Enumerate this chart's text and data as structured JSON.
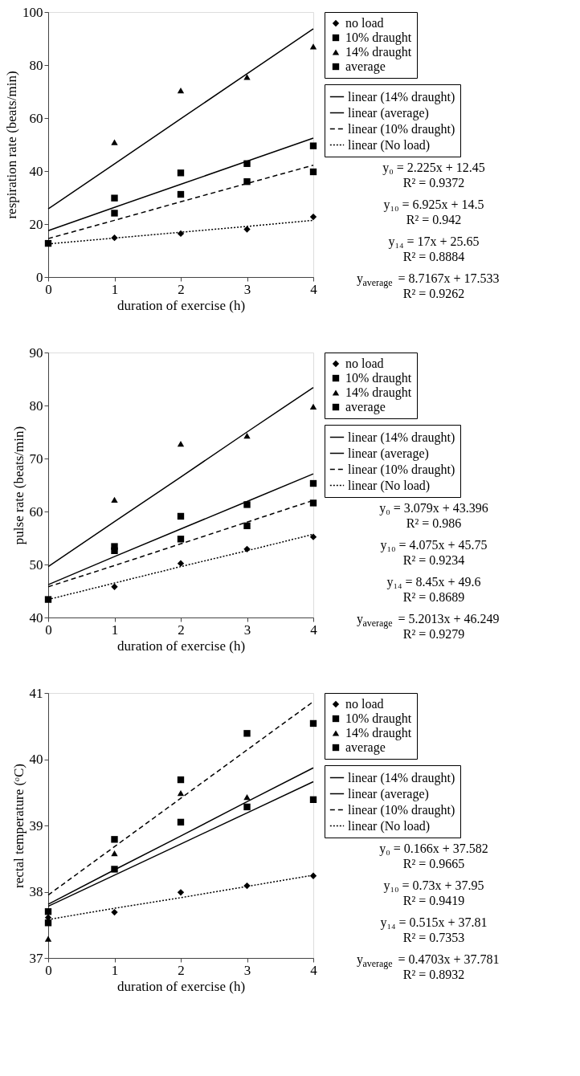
{
  "chart_data": [
    {
      "type": "scatter",
      "xlabel": "duration of exercise (h)",
      "ylabel": "respiration rate (beats/min)",
      "x": [
        0,
        1,
        2,
        3,
        4
      ],
      "xlim": [
        0,
        4
      ],
      "xticks": [
        0,
        1,
        2,
        3,
        4
      ],
      "ylim": [
        0,
        100
      ],
      "yticks": [
        0,
        20,
        40,
        60,
        80,
        100
      ],
      "grid": false,
      "legend": "right",
      "series": [
        {
          "name": "no load",
          "marker": "diamond",
          "color": "#000000",
          "values": [
            null,
            14.8,
            16.4,
            18.0,
            22.7
          ]
        },
        {
          "name": "10% draught",
          "marker": "square",
          "color": "#000000",
          "values": [
            null,
            24.1,
            31.2,
            36.0,
            39.7
          ]
        },
        {
          "name": "14% draught",
          "marker": "triangle",
          "color": "#000000",
          "values": [
            null,
            50.9,
            70.4,
            75.5,
            87.0
          ]
        },
        {
          "name": "average",
          "marker": "square",
          "color": "#000000",
          "values": [
            12.7,
            29.8,
            39.3,
            42.8,
            49.5
          ]
        },
        {
          "name": "linear (14% draught)",
          "type": "line",
          "line_style": "solid",
          "color": "#000000",
          "values": [
            25.7,
            42.7,
            59.7,
            76.7,
            93.7
          ]
        },
        {
          "name": "linear (average)",
          "type": "line",
          "line_style": "solid",
          "color": "#000000",
          "values": [
            17.5,
            26.3,
            35.0,
            43.7,
            52.4
          ]
        },
        {
          "name": "linear (10% draught)",
          "type": "line",
          "line_style": "dashed",
          "color": "#000000",
          "values": [
            14.5,
            21.4,
            28.4,
            35.3,
            42.2
          ]
        },
        {
          "name": "linear (No load)",
          "type": "line",
          "line_style": "dotted",
          "color": "#000000",
          "values": [
            12.5,
            14.7,
            16.9,
            19.1,
            21.4
          ]
        }
      ],
      "annotations": [
        "y₀ = 2.225x + 12.45",
        "R² = 0.9372",
        "y₁₀ = 6.925x + 14.5",
        "R² = 0.942",
        "y₁₄ = 17x + 25.65",
        "R² = 0.8884",
        "y$_{average}$ = 8.7167x + 17.533",
        "R² = 0.9262"
      ]
    },
    {
      "type": "scatter",
      "xlabel": "duration of exercise (h)",
      "ylabel": "pulse rate (beats/min)",
      "x": [
        0,
        1,
        2,
        3,
        4
      ],
      "xlim": [
        0,
        4
      ],
      "xticks": [
        0,
        1,
        2,
        3,
        4
      ],
      "ylim": [
        40,
        90
      ],
      "yticks": [
        40,
        50,
        60,
        70,
        80,
        90
      ],
      "grid": false,
      "legend": "right",
      "series": [
        {
          "name": "no load",
          "marker": "diamond",
          "color": "#000000",
          "values": [
            null,
            45.8,
            50.2,
            52.9,
            55.2
          ]
        },
        {
          "name": "10% draught",
          "marker": "square",
          "color": "#000000",
          "values": [
            null,
            52.6,
            54.8,
            57.3,
            61.6
          ]
        },
        {
          "name": "14% draught",
          "marker": "triangle",
          "color": "#000000",
          "values": [
            null,
            62.2,
            72.8,
            74.3,
            79.8
          ]
        },
        {
          "name": "average",
          "marker": "square",
          "color": "#000000",
          "values": [
            43.4,
            53.4,
            59.1,
            61.3,
            65.3
          ]
        },
        {
          "name": "linear (14% draught)",
          "type": "line",
          "line_style": "solid",
          "color": "#000000",
          "values": [
            49.6,
            58.1,
            66.5,
            75.0,
            83.4
          ]
        },
        {
          "name": "linear (average)",
          "type": "line",
          "line_style": "solid",
          "color": "#000000",
          "values": [
            46.2,
            51.5,
            56.7,
            61.9,
            67.1
          ]
        },
        {
          "name": "linear (10% draught)",
          "type": "line",
          "line_style": "dashed",
          "color": "#000000",
          "values": [
            45.8,
            49.8,
            53.9,
            58.0,
            62.1
          ]
        },
        {
          "name": "linear (No load)",
          "type": "line",
          "line_style": "dotted",
          "color": "#000000",
          "values": [
            43.4,
            46.5,
            49.6,
            52.6,
            55.7
          ]
        }
      ],
      "annotations": [
        "y₀ = 3.079x + 43.396",
        "R² = 0.986",
        "y₁₀ = 4.075x + 45.75",
        "R² = 0.9234",
        "y₁₄ = 8.45x + 49.6",
        "R² = 0.8689",
        "y$_{average}$ = 5.2013x + 46.249",
        "R² = 0.9279"
      ]
    },
    {
      "type": "scatter",
      "xlabel": "duration of exercise (h)",
      "ylabel": "rectal temperature (ᵒC)",
      "x": [
        0,
        1,
        2,
        3,
        4
      ],
      "xlim": [
        0,
        4
      ],
      "xticks": [
        0,
        1,
        2,
        3,
        4
      ],
      "ylim": [
        37,
        41
      ],
      "yticks": [
        37,
        38,
        39,
        40,
        41
      ],
      "grid": false,
      "legend": "right",
      "series": [
        {
          "name": "no load",
          "marker": "diamond",
          "color": "#000000",
          "values": [
            37.61,
            37.69,
            37.99,
            38.09,
            38.24
          ]
        },
        {
          "name": "10% draught",
          "marker": "square",
          "color": "#000000",
          "values": [
            37.7,
            38.79,
            39.69,
            40.39,
            40.54
          ]
        },
        {
          "name": "14% draught",
          "marker": "triangle",
          "color": "#000000",
          "values": [
            37.29,
            38.58,
            39.49,
            39.43,
            null
          ]
        },
        {
          "name": "average",
          "marker": "square",
          "color": "#000000",
          "values": [
            37.53,
            38.34,
            39.05,
            39.28,
            39.39
          ]
        },
        {
          "name": "linear (14% draught)",
          "type": "line",
          "line_style": "solid",
          "color": "#000000",
          "values": [
            37.81,
            38.33,
            38.84,
            39.36,
            39.87
          ]
        },
        {
          "name": "linear (average)",
          "type": "line",
          "line_style": "solid",
          "color": "#000000",
          "values": [
            37.78,
            38.25,
            38.72,
            39.19,
            39.66
          ]
        },
        {
          "name": "linear (10% draught)",
          "type": "line",
          "line_style": "dashed",
          "color": "#000000",
          "values": [
            37.95,
            38.68,
            39.41,
            40.14,
            40.87
          ]
        },
        {
          "name": "linear (No load)",
          "type": "line",
          "line_style": "dotted",
          "color": "#000000",
          "values": [
            37.58,
            37.75,
            37.91,
            38.08,
            38.25
          ]
        }
      ],
      "annotations": [
        "y₀ = 0.166x + 37.582",
        "R² = 0.9665",
        "y₁₀ = 0.73x + 37.95",
        "R² = 0.9419",
        "y₁₄ = 0.515x + 37.81",
        "R² = 0.7353",
        "y$_{average}$ = 0.4703x + 37.781",
        "R² = 0.8932"
      ]
    }
  ]
}
